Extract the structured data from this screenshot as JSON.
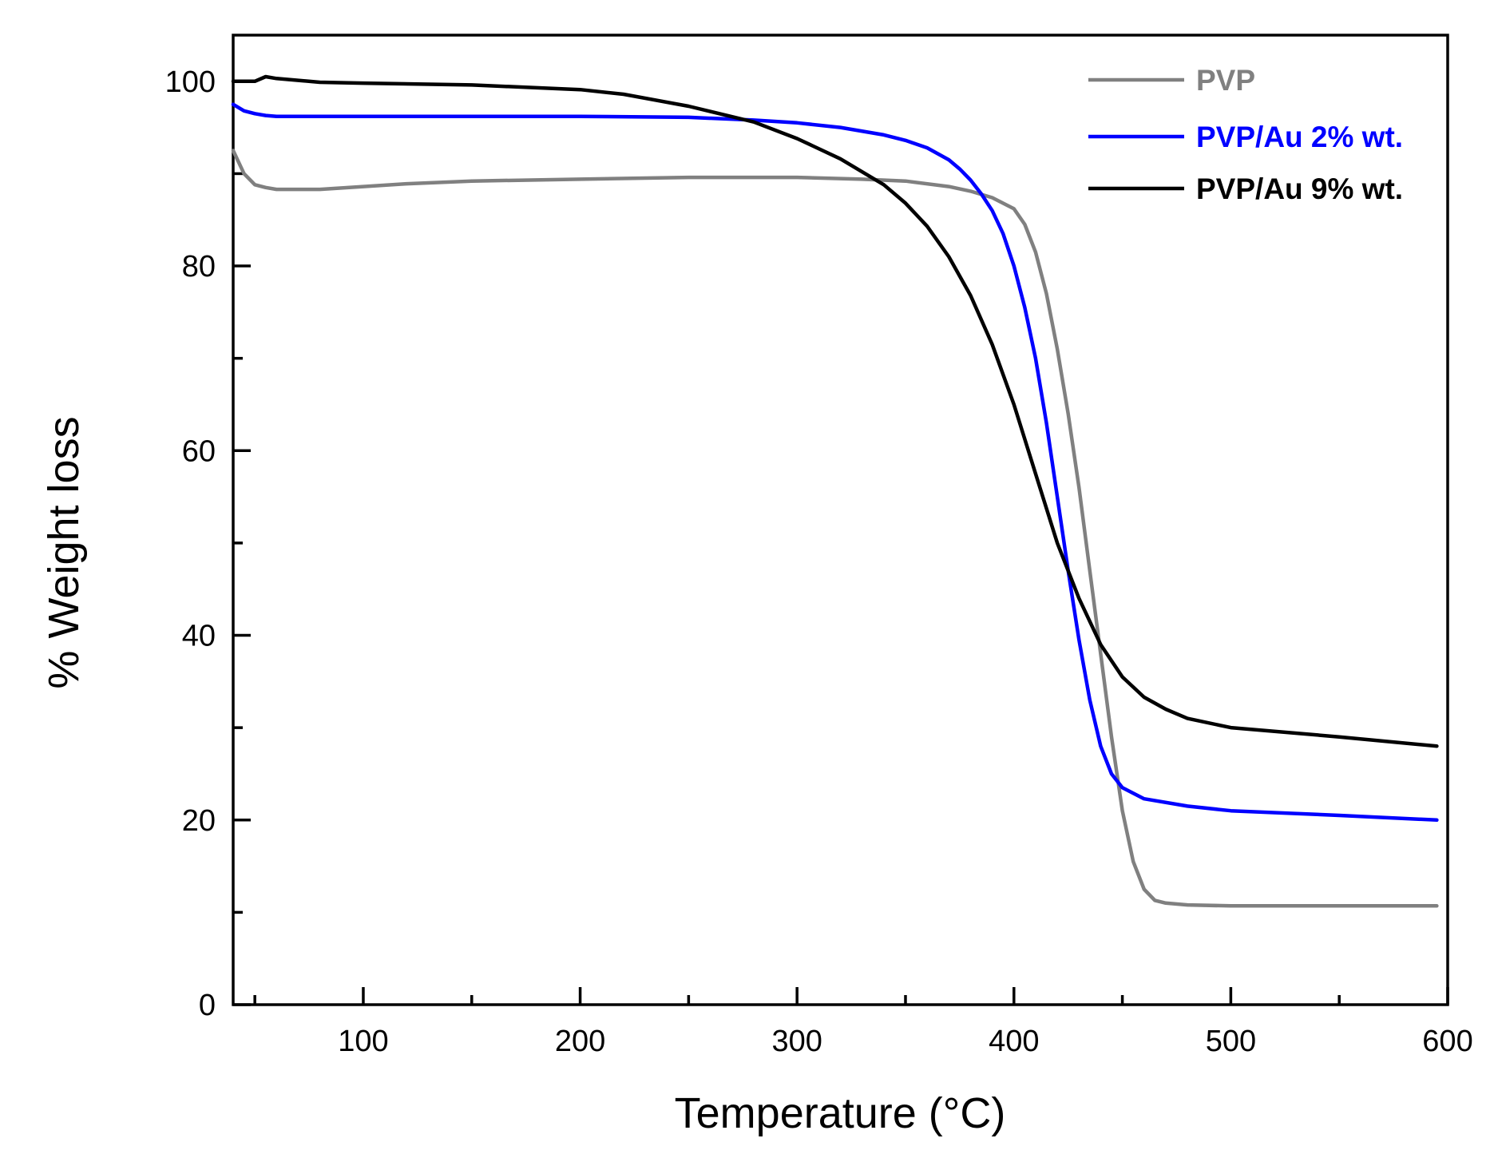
{
  "chart_data": {
    "type": "line",
    "title": "",
    "xlabel": "Temperature (°C)",
    "ylabel": "% Weight loss",
    "xlim": [
      40,
      600
    ],
    "ylim": [
      0,
      105
    ],
    "x_major_ticks": [
      100,
      200,
      300,
      400,
      500,
      600
    ],
    "x_minor_ticks": [
      50,
      150,
      250,
      350,
      450,
      550
    ],
    "x_tick_labels": [
      "100",
      "200",
      "300",
      "400",
      "500",
      "600"
    ],
    "y_major_ticks": [
      0,
      20,
      40,
      60,
      80,
      100
    ],
    "y_minor_ticks": [
      10,
      30,
      50,
      70,
      90
    ],
    "y_tick_labels": [
      "0",
      "20",
      "40",
      "60",
      "80",
      "100"
    ],
    "grid": false,
    "legend_position": "top-right",
    "series": [
      {
        "name": "PVP",
        "color": "#808080",
        "x": [
          40,
          45,
          50,
          55,
          60,
          70,
          80,
          100,
          120,
          150,
          200,
          250,
          300,
          330,
          350,
          370,
          380,
          390,
          400,
          405,
          410,
          415,
          420,
          425,
          430,
          435,
          440,
          445,
          450,
          455,
          460,
          465,
          470,
          480,
          500,
          550,
          595
        ],
        "y": [
          92.5,
          90.0,
          88.8,
          88.5,
          88.3,
          88.3,
          88.3,
          88.6,
          88.9,
          89.2,
          89.4,
          89.6,
          89.6,
          89.4,
          89.2,
          88.6,
          88.1,
          87.4,
          86.2,
          84.5,
          81.5,
          77.0,
          71.0,
          64.0,
          56.0,
          47.0,
          38.0,
          29.0,
          21.0,
          15.5,
          12.5,
          11.3,
          11.0,
          10.8,
          10.7,
          10.7,
          10.7
        ]
      },
      {
        "name": "PVP/Au 2% wt.",
        "color": "#0000ff",
        "x": [
          40,
          45,
          50,
          55,
          60,
          70,
          100,
          150,
          200,
          250,
          280,
          300,
          320,
          340,
          350,
          360,
          370,
          375,
          380,
          385,
          390,
          395,
          400,
          405,
          410,
          415,
          420,
          425,
          430,
          435,
          440,
          445,
          450,
          460,
          480,
          500,
          550,
          595
        ],
        "y": [
          97.5,
          96.8,
          96.5,
          96.3,
          96.2,
          96.2,
          96.2,
          96.2,
          96.2,
          96.1,
          95.8,
          95.5,
          95.0,
          94.2,
          93.6,
          92.8,
          91.5,
          90.5,
          89.3,
          87.8,
          86.0,
          83.5,
          80.0,
          75.5,
          70.0,
          63.0,
          55.0,
          47.0,
          39.5,
          33.0,
          28.0,
          25.0,
          23.5,
          22.3,
          21.5,
          21.0,
          20.5,
          20.0
        ]
      },
      {
        "name": "PVP/Au 9% wt.",
        "color": "#000000",
        "x": [
          40,
          50,
          55,
          60,
          80,
          100,
          150,
          200,
          220,
          250,
          280,
          300,
          320,
          340,
          350,
          360,
          370,
          380,
          390,
          400,
          410,
          420,
          430,
          440,
          450,
          460,
          470,
          480,
          500,
          550,
          595
        ],
        "y": [
          100.0,
          100.0,
          100.5,
          100.3,
          99.9,
          99.8,
          99.6,
          99.1,
          98.6,
          97.3,
          95.6,
          93.8,
          91.6,
          88.8,
          86.8,
          84.3,
          81.0,
          76.8,
          71.5,
          65.0,
          57.5,
          50.0,
          44.0,
          39.0,
          35.5,
          33.3,
          32.0,
          31.0,
          30.0,
          29.0,
          28.0
        ]
      }
    ]
  }
}
